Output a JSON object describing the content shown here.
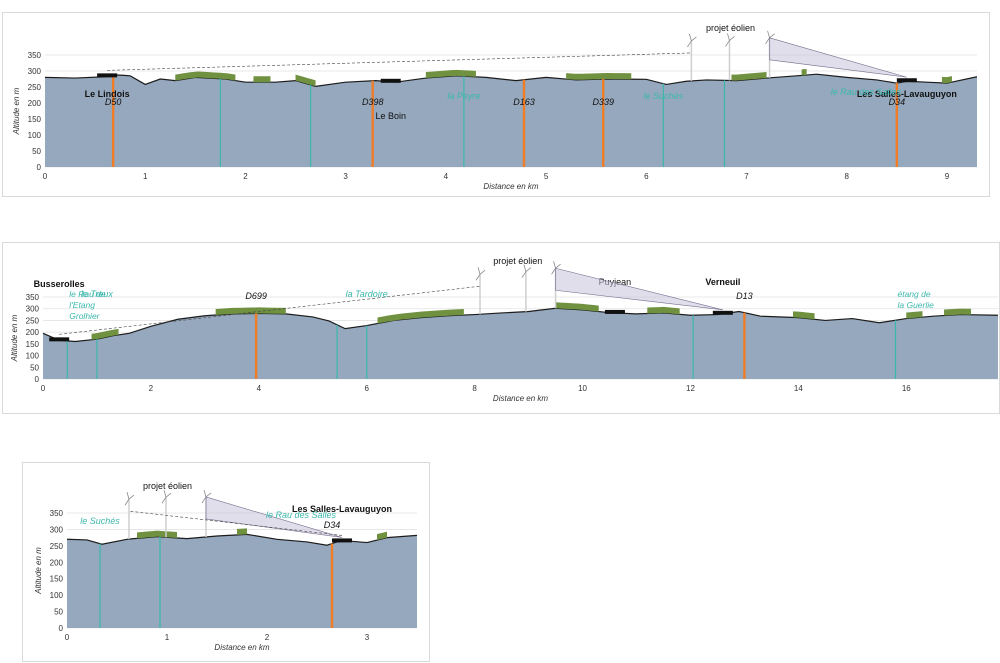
{
  "chart_data": [
    {
      "type": "area",
      "ylabel": "Altitude en m",
      "xlabel": "Distance en km",
      "xlim": [
        0,
        9.3
      ],
      "ylim": [
        0,
        350
      ],
      "xticks": [
        0,
        1,
        2,
        3,
        4,
        5,
        6,
        7,
        8,
        9
      ],
      "yticks": [
        0,
        50,
        100,
        150,
        200,
        250,
        300,
        350
      ],
      "profile": {
        "x": [
          0,
          0.3,
          0.6,
          0.7,
          0.85,
          1.0,
          1.15,
          1.3,
          1.5,
          1.8,
          2.0,
          2.3,
          2.5,
          2.7,
          3.0,
          3.3,
          3.5,
          3.8,
          4.1,
          4.4,
          4.7,
          5.0,
          5.3,
          5.6,
          6.0,
          6.2,
          6.4,
          6.6,
          6.9,
          7.2,
          7.5,
          7.7,
          8.0,
          8.3,
          8.5,
          8.6,
          8.8,
          9.0,
          9.3
        ],
        "y": [
          280,
          278,
          282,
          288,
          285,
          258,
          275,
          270,
          280,
          275,
          265,
          265,
          270,
          252,
          265,
          270,
          265,
          278,
          285,
          280,
          270,
          280,
          272,
          275,
          274,
          258,
          268,
          272,
          270,
          278,
          285,
          290,
          280,
          272,
          262,
          268,
          265,
          262,
          282
        ]
      },
      "roads": [
        {
          "name": "D50",
          "x": 0.68
        },
        {
          "name": "D398",
          "x": 3.27
        },
        {
          "name": "D163",
          "x": 4.78
        },
        {
          "name": "D339",
          "x": 5.57
        },
        {
          "name": "D34",
          "x": 8.5
        }
      ],
      "streams": [
        {
          "name": "",
          "x": 1.75
        },
        {
          "name": "",
          "x": 2.65
        },
        {
          "name": "la Peyre",
          "x": 4.18
        },
        {
          "name": "le Suchés",
          "x": 6.17
        },
        {
          "name": "",
          "x": 6.78
        }
      ],
      "places": [
        {
          "name": "Le Lindois",
          "x": 0.62,
          "bold": true
        },
        {
          "name": "Le Boin",
          "x": 3.45,
          "bold": false
        },
        {
          "name": "Les Salles-Lavauguyon",
          "x": 8.6,
          "bold": true
        }
      ],
      "extra_labels": [
        "projet éolien",
        "le Rau des Salles"
      ],
      "turbines": [
        6.45,
        6.83,
        7.23
      ],
      "forest": [
        [
          1.3,
          1.9
        ],
        [
          2.08,
          2.25
        ],
        [
          2.5,
          2.7
        ],
        [
          3.8,
          4.3
        ],
        [
          5.2,
          5.85
        ],
        [
          6.85,
          7.2
        ],
        [
          7.55,
          7.6
        ],
        [
          8.95,
          9.05
        ]
      ]
    },
    {
      "type": "area",
      "ylabel": "Altitude en m",
      "xlabel": "Distance en km",
      "xlim": [
        0,
        17.7
      ],
      "ylim": [
        0,
        350
      ],
      "xticks": [
        0,
        2,
        4,
        6,
        8,
        10,
        12,
        14,
        16
      ],
      "yticks": [
        0,
        50,
        100,
        150,
        200,
        250,
        300,
        350
      ],
      "profile": {
        "x": [
          0,
          0.3,
          0.6,
          1.0,
          1.3,
          1.6,
          2.0,
          2.5,
          3.0,
          3.5,
          4.0,
          4.5,
          5.0,
          5.3,
          5.6,
          6.0,
          6.5,
          7.0,
          7.5,
          8.0,
          8.5,
          9.0,
          9.5,
          10.0,
          10.5,
          11.0,
          11.5,
          12.0,
          12.5,
          12.9,
          13.3,
          14.0,
          14.5,
          15.0,
          15.5,
          16.0,
          16.5,
          17.0,
          17.7
        ],
        "y": [
          195,
          165,
          160,
          170,
          185,
          195,
          225,
          255,
          270,
          278,
          280,
          278,
          265,
          248,
          215,
          228,
          250,
          262,
          270,
          275,
          282,
          288,
          302,
          295,
          283,
          278,
          282,
          272,
          275,
          288,
          268,
          262,
          250,
          258,
          240,
          258,
          268,
          275,
          272
        ]
      },
      "roads": [
        {
          "name": "D699",
          "x": 3.95
        },
        {
          "name": "D13",
          "x": 13.0
        }
      ],
      "streams": [
        {
          "name": "le Rau de l'Etang Grolhier",
          "x": 0.45
        },
        {
          "name": "le Treux",
          "x": 1.0
        },
        {
          "name": "",
          "x": 5.45
        },
        {
          "name": "la Tardoire",
          "x": 6.0
        },
        {
          "name": "",
          "x": 12.05
        },
        {
          "name": "étang de la Guerlie",
          "x": 15.8
        }
      ],
      "places": [
        {
          "name": "Busserolles",
          "x": 0.3,
          "bold": true
        },
        {
          "name": "Puyjean",
          "x": 10.6,
          "bold": false
        },
        {
          "name": "Verneuil",
          "x": 12.6,
          "bold": true
        }
      ],
      "extra_labels": [
        "projet éolien"
      ],
      "turbines": [
        8.1,
        8.95,
        9.5
      ],
      "forest": [
        [
          0.9,
          1.4
        ],
        [
          3.2,
          4.5
        ],
        [
          6.2,
          7.8
        ],
        [
          9.5,
          10.3
        ],
        [
          11.2,
          11.8
        ],
        [
          13.9,
          14.3
        ],
        [
          16.0,
          16.3
        ],
        [
          16.7,
          17.2
        ]
      ]
    },
    {
      "type": "area",
      "ylabel": "Altitude en m",
      "xlabel": "Distance en km",
      "xlim": [
        0,
        3.5
      ],
      "ylim": [
        0,
        350
      ],
      "xticks": [
        0,
        1,
        2,
        3
      ],
      "yticks": [
        0,
        50,
        100,
        150,
        200,
        250,
        300,
        350
      ],
      "profile": {
        "x": [
          0,
          0.2,
          0.35,
          0.6,
          0.9,
          1.2,
          1.5,
          1.8,
          2.1,
          2.4,
          2.6,
          2.7,
          2.8,
          3.0,
          3.2,
          3.5
        ],
        "y": [
          270,
          268,
          255,
          270,
          278,
          272,
          280,
          285,
          270,
          262,
          252,
          262,
          265,
          260,
          275,
          282
        ]
      },
      "roads": [
        {
          "name": "D34",
          "x": 2.65
        }
      ],
      "streams": [
        {
          "name": "le Suchés",
          "x": 0.33
        },
        {
          "name": "",
          "x": 0.93
        }
      ],
      "places": [
        {
          "name": "Les Salles-Lavauguyon",
          "x": 2.75,
          "bold": true
        }
      ],
      "extra_labels": [
        "projet éolien",
        "le Rau des Salles"
      ],
      "turbines": [
        0.62,
        0.99,
        1.39
      ],
      "forest": [
        [
          0.7,
          1.1
        ],
        [
          1.7,
          1.8
        ],
        [
          3.1,
          3.2
        ]
      ]
    }
  ]
}
